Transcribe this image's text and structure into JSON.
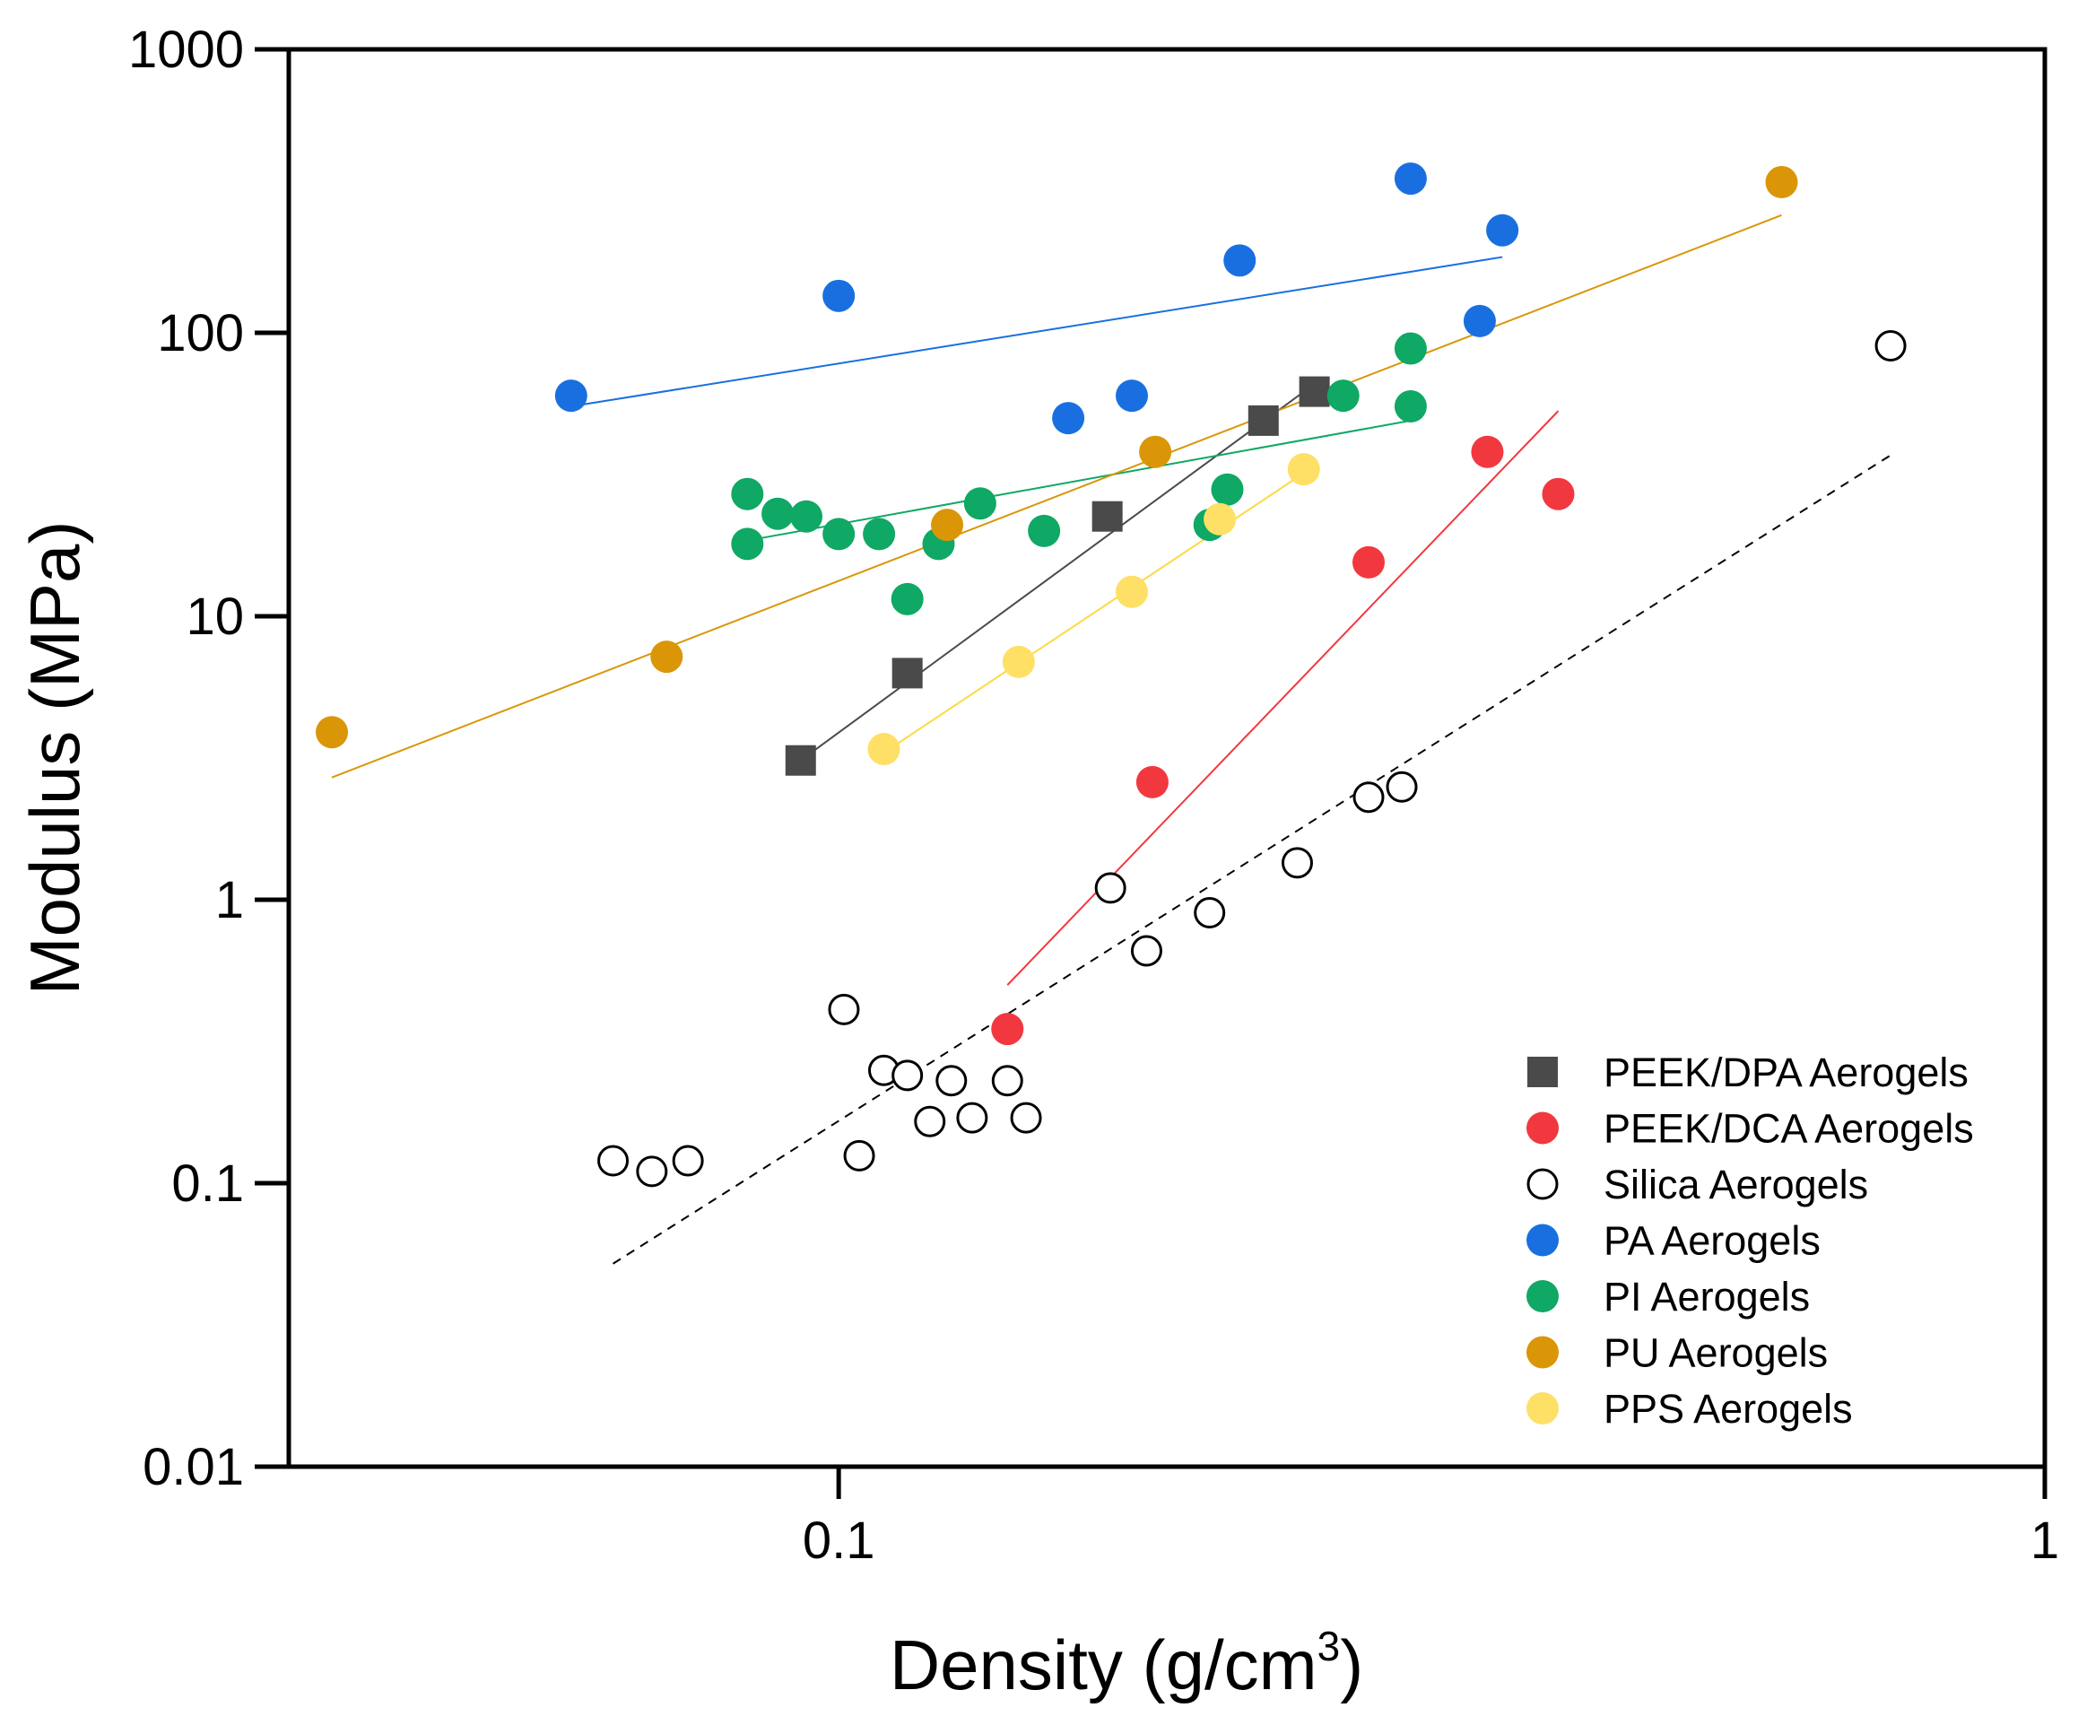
{
  "chart_data": {
    "type": "scatter",
    "xlabel": "Density (g/cm",
    "xlabel_sup": "3",
    "xlabel_close": ")",
    "ylabel": "Modulus (MPa)",
    "xscale": "log",
    "yscale": "log",
    "xlim": [
      0.035,
      1
    ],
    "ylim": [
      0.01,
      1000
    ],
    "x_ticks": [
      {
        "value": 0.1,
        "label": "0.1"
      },
      {
        "value": 1,
        "label": "1"
      }
    ],
    "y_ticks": [
      {
        "value": 0.01,
        "label": "0.01"
      },
      {
        "value": 0.1,
        "label": "0.1"
      },
      {
        "value": 1,
        "label": "1"
      },
      {
        "value": 10,
        "label": "10"
      },
      {
        "value": 100,
        "label": "100"
      },
      {
        "value": 1000,
        "label": "1000"
      }
    ],
    "legend_position": "bottom-right",
    "series": [
      {
        "name": "PEEK/DPA Aerogels",
        "marker": "square",
        "color": "#4a4a4a",
        "filled": true,
        "points": [
          [
            0.093,
            3.1
          ],
          [
            0.114,
            6.3
          ],
          [
            0.167,
            22.5
          ],
          [
            0.225,
            49
          ],
          [
            0.248,
            62
          ]
        ],
        "fit": {
          "color": "#4a4a4a",
          "style": "solid",
          "points": [
            [
              0.093,
              3.1
            ],
            [
              0.248,
              66
            ]
          ]
        }
      },
      {
        "name": "PEEK/DCA Aerogels",
        "marker": "circle",
        "color": "#f2383f",
        "filled": true,
        "points": [
          [
            0.138,
            0.35
          ],
          [
            0.182,
            2.6
          ],
          [
            0.275,
            15.5
          ],
          [
            0.345,
            38
          ],
          [
            0.395,
            27
          ]
        ],
        "fit": {
          "color": "#f2383f",
          "style": "solid",
          "points": [
            [
              0.138,
              0.5
            ],
            [
              0.395,
              53
            ]
          ]
        }
      },
      {
        "name": "Silica Aerogels",
        "marker": "circle",
        "color": "#000000",
        "filled": false,
        "points": [
          [
            0.065,
            0.12
          ],
          [
            0.07,
            0.11
          ],
          [
            0.075,
            0.12
          ],
          [
            0.101,
            0.41
          ],
          [
            0.104,
            0.125
          ],
          [
            0.109,
            0.25
          ],
          [
            0.114,
            0.24
          ],
          [
            0.119,
            0.165
          ],
          [
            0.124,
            0.23
          ],
          [
            0.129,
            0.17
          ],
          [
            0.138,
            0.23
          ],
          [
            0.143,
            0.17
          ],
          [
            0.168,
            1.1
          ],
          [
            0.18,
            0.66
          ],
          [
            0.203,
            0.9
          ],
          [
            0.24,
            1.35
          ],
          [
            0.275,
            2.3
          ],
          [
            0.293,
            2.5
          ],
          [
            0.745,
            90
          ]
        ],
        "fit": {
          "color": "#000000",
          "style": "dashed",
          "points": [
            [
              0.065,
              0.052
            ],
            [
              0.745,
              37
            ]
          ]
        }
      },
      {
        "name": "PA Aerogels",
        "marker": "circle",
        "color": "#1a6fe0",
        "filled": true,
        "points": [
          [
            0.06,
            60
          ],
          [
            0.1,
            135
          ],
          [
            0.155,
            50
          ],
          [
            0.175,
            60
          ],
          [
            0.215,
            180
          ],
          [
            0.298,
            350
          ],
          [
            0.34,
            110
          ],
          [
            0.355,
            230
          ]
        ],
        "fit": {
          "color": "#1a6fe0",
          "style": "solid",
          "points": [
            [
              0.06,
              55
            ],
            [
              0.355,
              185
            ]
          ]
        }
      },
      {
        "name": "PI Aerogels",
        "marker": "circle",
        "color": "#0fa864",
        "filled": true,
        "points": [
          [
            0.084,
            18
          ],
          [
            0.084,
            27
          ],
          [
            0.089,
            23
          ],
          [
            0.094,
            22.5
          ],
          [
            0.1,
            19.5
          ],
          [
            0.108,
            19.5
          ],
          [
            0.114,
            11.5
          ],
          [
            0.121,
            18
          ],
          [
            0.131,
            25
          ],
          [
            0.148,
            20
          ],
          [
            0.203,
            21
          ],
          [
            0.21,
            28
          ],
          [
            0.262,
            60
          ],
          [
            0.298,
            88
          ],
          [
            0.298,
            55
          ]
        ],
        "fit": {
          "color": "#0fa864",
          "style": "solid",
          "points": [
            [
              0.084,
              18.5
            ],
            [
              0.298,
              49
            ]
          ]
        }
      },
      {
        "name": "PU Aerogels",
        "marker": "circle",
        "color": "#da9607",
        "filled": true,
        "points": [
          [
            0.038,
            3.9
          ],
          [
            0.072,
            7.2
          ],
          [
            0.123,
            21
          ],
          [
            0.183,
            38
          ],
          [
            0.605,
            340
          ]
        ],
        "fit": {
          "color": "#da9607",
          "style": "solid",
          "points": [
            [
              0.038,
              2.7
            ],
            [
              0.605,
              260
            ]
          ]
        }
      },
      {
        "name": "PPS Aerogels",
        "marker": "circle",
        "color": "#ffe066",
        "filled": true,
        "points": [
          [
            0.109,
            3.4
          ],
          [
            0.141,
            6.9
          ],
          [
            0.175,
            12.2
          ],
          [
            0.207,
            22
          ],
          [
            0.243,
            33
          ]
        ],
        "fit": {
          "color": "#ffd940",
          "style": "solid",
          "points": [
            [
              0.109,
              3.3
            ],
            [
              0.243,
              32
            ]
          ]
        }
      }
    ]
  }
}
